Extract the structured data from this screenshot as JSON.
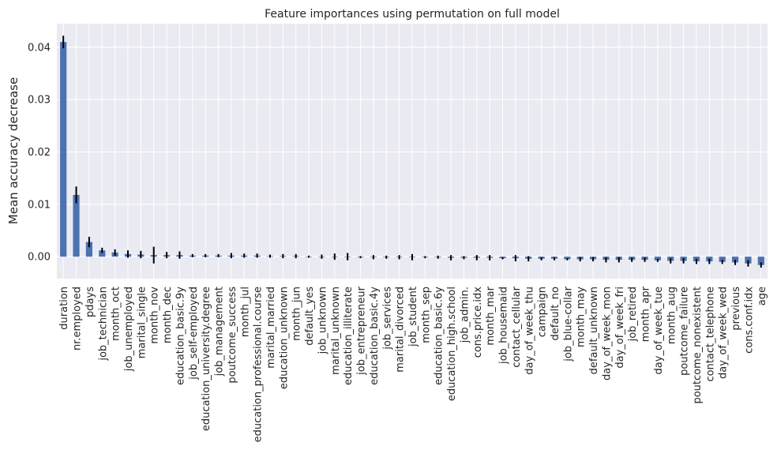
{
  "chart_data": {
    "type": "bar",
    "title": "Feature importances using permutation on full model",
    "xlabel": "",
    "ylabel": "Mean accuracy decrease",
    "ylim": [
      -0.0042,
      0.0445
    ],
    "yticks": [
      0.0,
      0.01,
      0.02,
      0.03,
      0.04
    ],
    "ytick_labels": [
      "0.00",
      "0.01",
      "0.02",
      "0.03",
      "0.04"
    ],
    "grid": true,
    "bar_color": "#4c72b0",
    "error_color": "#000000",
    "background_color": "#eaeaf2",
    "grid_color": "#ffffff",
    "categories": [
      "duration",
      "nr.employed",
      "pdays",
      "job_technician",
      "month_oct",
      "job_unemployed",
      "marital_single",
      "month_nov",
      "month_dec",
      "education_basic.9y",
      "job_self-employed",
      "education_university.degree",
      "job_management",
      "poutcome_success",
      "month_jul",
      "education_professional.course",
      "marital_married",
      "education_unknown",
      "month_jun",
      "default_yes",
      "job_unknown",
      "marital_unknown",
      "education_illiterate",
      "job_entrepreneur",
      "education_basic.4y",
      "job_services",
      "marital_divorced",
      "job_student",
      "month_sep",
      "education_basic.6y",
      "education_high.school",
      "job_admin.",
      "cons.price.idx",
      "month_mar",
      "job_housemaid",
      "contact_cellular",
      "day_of_week_thu",
      "campaign",
      "default_no",
      "job_blue-collar",
      "month_may",
      "default_unknown",
      "day_of_week_mon",
      "day_of_week_fri",
      "job_retired",
      "month_apr",
      "day_of_week_tue",
      "month_aug",
      "poutcome_failure",
      "poutcome_nonexistent",
      "contact_telephone",
      "day_of_week_wed",
      "previous",
      "cons.conf.idx",
      "age"
    ],
    "values": [
      0.041,
      0.0118,
      0.0028,
      0.0012,
      0.0008,
      0.0005,
      0.0004,
      0.0003,
      0.0003,
      0.0003,
      0.0002,
      0.0002,
      0.0002,
      0.0002,
      0.0002,
      0.0002,
      0.0001,
      0.0001,
      0.0001,
      0.0,
      0.0,
      0.0,
      0.0,
      -0.0001,
      -0.0001,
      -0.0001,
      -0.0001,
      -0.0001,
      -0.0001,
      -0.0001,
      -0.0002,
      -0.0002,
      -0.0002,
      -0.0002,
      -0.0003,
      -0.0003,
      -0.0004,
      -0.0004,
      -0.0004,
      -0.0005,
      -0.0005,
      -0.0005,
      -0.0006,
      -0.0006,
      -0.0006,
      -0.0006,
      -0.0007,
      -0.0008,
      -0.0008,
      -0.0009,
      -0.0009,
      -0.001,
      -0.0011,
      -0.0013,
      -0.0016
    ],
    "errors": [
      0.0012,
      0.0016,
      0.001,
      0.0005,
      0.0006,
      0.0007,
      0.0007,
      0.0016,
      0.0006,
      0.0007,
      0.0003,
      0.0003,
      0.0003,
      0.0005,
      0.0004,
      0.0004,
      0.0003,
      0.0004,
      0.0004,
      0.0002,
      0.0004,
      0.0006,
      0.0007,
      0.0002,
      0.0004,
      0.0003,
      0.0004,
      0.0006,
      0.0002,
      0.0003,
      0.0005,
      0.0003,
      0.0005,
      0.0005,
      0.0002,
      0.0006,
      0.0005,
      0.0003,
      0.0003,
      0.0002,
      0.0004,
      0.0004,
      0.0005,
      0.0005,
      0.0004,
      0.0004,
      0.0003,
      0.0005,
      0.0005,
      0.0005,
      0.0005,
      0.0004,
      0.0005,
      0.0006,
      0.0005
    ]
  }
}
